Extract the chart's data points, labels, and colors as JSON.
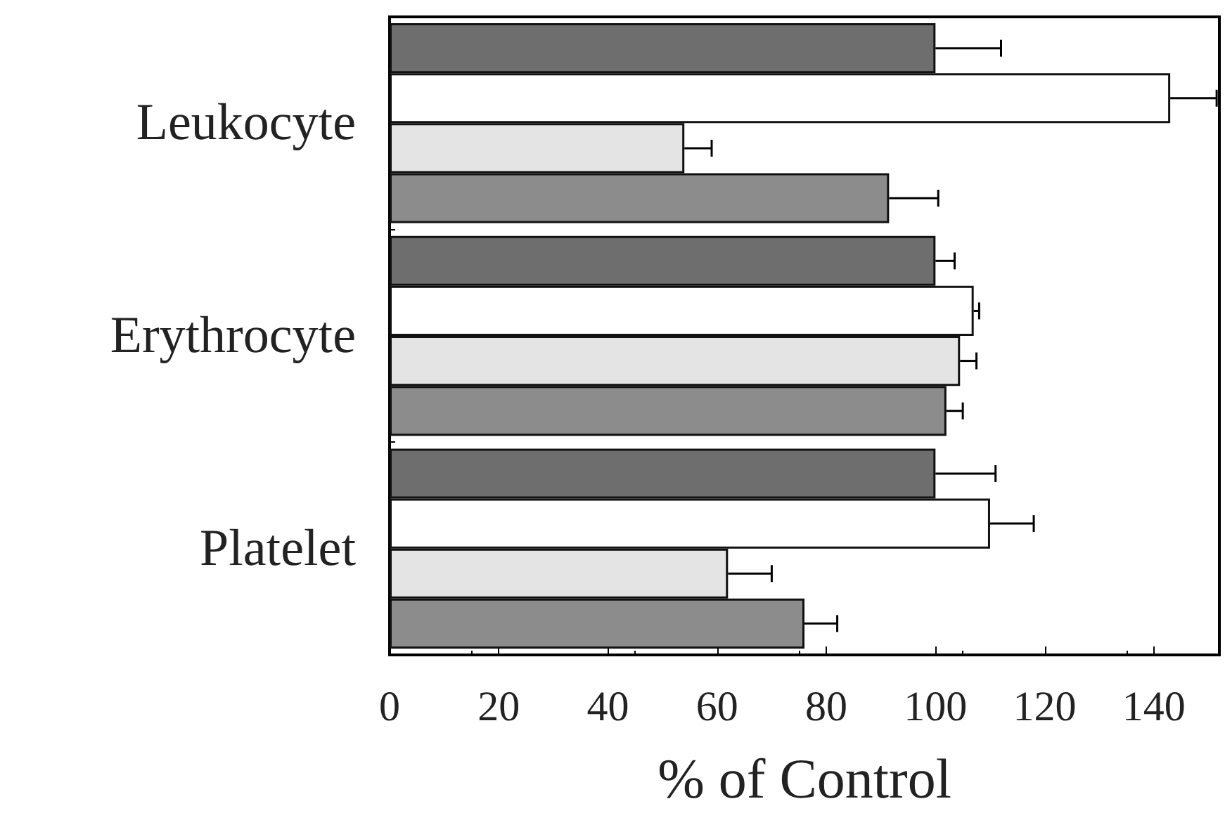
{
  "chart_data": {
    "type": "bar",
    "orientation": "horizontal",
    "xlabel": "% of Control",
    "categories": [
      "Leukocyte",
      "Erythrocyte",
      "Platelet"
    ],
    "series": [
      {
        "color": "#6e6e6e",
        "values": [
          100,
          100,
          100
        ],
        "errors": [
          12,
          3.5,
          11
        ]
      },
      {
        "color": "#ffffff",
        "values": [
          143,
          107,
          110
        ],
        "errors": [
          8.5,
          1,
          8
        ]
      },
      {
        "color": "#e4e4e4",
        "values": [
          54,
          104.5,
          62
        ],
        "errors": [
          5,
          3,
          8
        ]
      },
      {
        "color": "#8c8c8c",
        "values": [
          91.5,
          102,
          76
        ],
        "errors": [
          9,
          3,
          6
        ]
      }
    ],
    "xlim": [
      0,
      152
    ],
    "xticks": [
      0,
      20,
      40,
      60,
      80,
      100,
      120,
      140
    ],
    "grid": false
  }
}
